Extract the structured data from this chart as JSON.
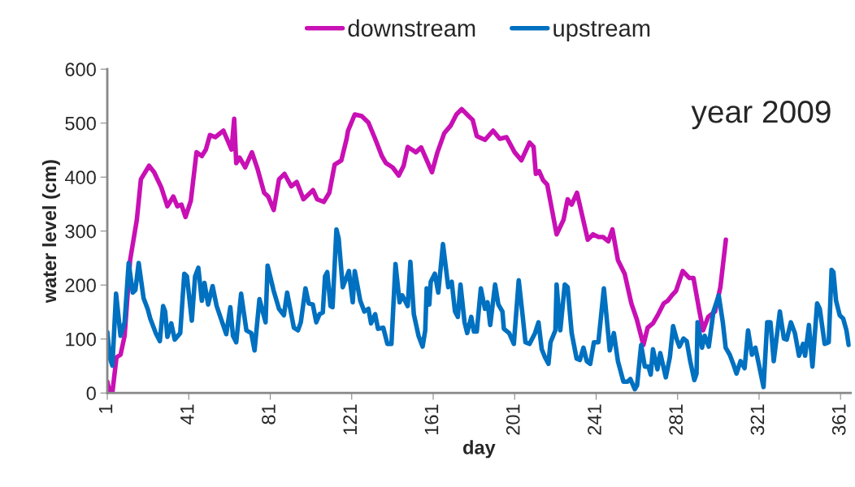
{
  "chart_data": {
    "type": "line",
    "xlabel": "day",
    "ylabel": "water level (cm)",
    "annotations": [
      "year 2009"
    ],
    "xlim": [
      1,
      366
    ],
    "xticks": [
      1,
      41,
      81,
      121,
      161,
      201,
      241,
      281,
      321,
      361
    ],
    "ylim": [
      0,
      600
    ],
    "yticks": [
      0,
      100,
      200,
      300,
      400,
      500,
      600
    ],
    "grid": false,
    "legend": "top",
    "marker": "none",
    "line_style": "solid",
    "series": [
      {
        "name": "downstream",
        "color": "#c810b4",
        "x": [
          1,
          2.2,
          3.5,
          5.5,
          7.5,
          9.5,
          12.2,
          15.5,
          17.5,
          21.5,
          24,
          27.5,
          30.5,
          33.4,
          35.4,
          37.4,
          39.4,
          42,
          44.8,
          47.4,
          49.4,
          51.4,
          54,
          58,
          62,
          63.3,
          64.3,
          66,
          68.7,
          72,
          74.7,
          78,
          80,
          82.7,
          85.3,
          88,
          91.3,
          94,
          97.3,
          102,
          104,
          107.3,
          110,
          112.6,
          115.9,
          118.5,
          119.2,
          122.5,
          125.9,
          129.2,
          132.5,
          135.8,
          137.8,
          141.1,
          144.1,
          146.5,
          148.5,
          152.5,
          155.1,
          160.4,
          163.1,
          166.4,
          169.7,
          172.4,
          175,
          178.4,
          180.4,
          182.4,
          186.4,
          190.4,
          193.7,
          197,
          201,
          204.3,
          208.3,
          210.3,
          211.4,
          213,
          215,
          217,
          221.6,
          225,
          227,
          229,
          231.6,
          236.9,
          239.5,
          242.2,
          244.4,
          247,
          249,
          251.7,
          255,
          258.3,
          261,
          264.2,
          266.3,
          268.9,
          271.5,
          274.2,
          276.2,
          278.2,
          280.2,
          283.5,
          286.8,
          288.8,
          291.5,
          293.5,
          296,
          299.4,
          302,
          304.7
        ],
        "values": [
          21,
          1,
          1,
          66,
          71,
          106,
          246,
          321,
          396,
          421,
          409,
          381,
          346,
          364,
          346,
          349,
          326,
          356,
          446,
          439,
          451,
          478,
          474,
          486,
          451,
          508,
          426,
          436,
          418,
          446,
          416,
          371,
          364,
          339,
          396,
          406,
          383,
          391,
          359,
          376,
          359,
          354,
          371,
          423,
          431,
          471,
          486,
          516,
          513,
          501,
          471,
          439,
          426,
          418,
          403,
          421,
          456,
          446,
          455,
          409,
          446,
          481,
          496,
          516,
          526,
          513,
          506,
          476,
          469,
          486,
          471,
          474,
          446,
          431,
          464,
          456,
          406,
          411,
          394,
          386,
          294,
          321,
          359,
          349,
          371,
          284,
          294,
          289,
          289,
          281,
          303,
          246,
          221,
          166,
          136,
          89,
          121,
          129,
          146,
          166,
          171,
          181,
          189,
          226,
          213,
          213,
          156,
          116,
          141,
          151,
          196,
          284
        ]
      },
      {
        "name": "upstream",
        "color": "#0070c0",
        "x": [
          1,
          2.2,
          3.5,
          5.3,
          7.5,
          9.5,
          11.5,
          13.5,
          14.8,
          16.4,
          18.8,
          20.8,
          22.1,
          24.8,
          26.8,
          28.4,
          29.4,
          30.5,
          32.4,
          34.1,
          36.8,
          38.8,
          40.1,
          42.5,
          44.1,
          45.7,
          47.4,
          48.7,
          50.5,
          52.7,
          54.7,
          59.4,
          61.4,
          62.7,
          64.3,
          66.7,
          69.3,
          71.7,
          73.3,
          75.7,
          78.7,
          79.7,
          82.7,
          85.3,
          87.7,
          89.3,
          92.6,
          94.6,
          96,
          98.3,
          99.9,
          101.9,
          103.6,
          105.2,
          106.8,
          107.9,
          109,
          110.6,
          111.6,
          113.5,
          114.6,
          116.6,
          119.6,
          121.5,
          122.5,
          125.2,
          127.2,
          129.2,
          130.5,
          132.5,
          133.9,
          136.5,
          138.5,
          140.5,
          142.5,
          144.5,
          145.8,
          148.5,
          149.8,
          151.5,
          153.8,
          155.8,
          157.1,
          157.8,
          159.1,
          159.8,
          161.8,
          163.5,
          165.8,
          168.4,
          170.1,
          171.7,
          173.1,
          174.4,
          176.4,
          177.7,
          179.7,
          181,
          182.4,
          184.4,
          186.4,
          187.7,
          189,
          191.4,
          193,
          195,
          195.7,
          198.3,
          200.6,
          203,
          204.7,
          206.3,
          208.3,
          211,
          212.7,
          214.3,
          215.9,
          217.6,
          218.6,
          221,
          221.6,
          223.4,
          225.6,
          227,
          229,
          231.4,
          233,
          234.8,
          236.4,
          238.1,
          239.9,
          242.1,
          244.8,
          247.7,
          249.7,
          251.7,
          254.4,
          256.4,
          257.8,
          260,
          261.1,
          263.1,
          264.9,
          266.7,
          267.8,
          268.9,
          271.1,
          272.5,
          275.2,
          277.2,
          278.8,
          280.6,
          281.9,
          283.9,
          285.5,
          287.2,
          289.2,
          290.3,
          290.8,
          293,
          294.3,
          296.3,
          298.6,
          301.2,
          303.2,
          304.6,
          306.6,
          308.6,
          309.9,
          311.9,
          313.9,
          315.6,
          317.5,
          319.2,
          323.2,
          325,
          326.6,
          328.2,
          331.2,
          333.2,
          334.6,
          336.6,
          338.6,
          340.6,
          342.6,
          343.6,
          345.5,
          347.2,
          349.5,
          350.8,
          353.2,
          355.2,
          356.6,
          357.5,
          358.8,
          360.6,
          362.3,
          363.9,
          365
        ],
        "values": [
          113,
          66,
          51,
          184,
          106,
          131,
          241,
          186,
          191,
          241,
          176,
          156,
          138,
          111,
          96,
          161,
          151,
          104,
          129,
          99,
          111,
          221,
          216,
          134,
          216,
          232,
          171,
          204,
          164,
          198,
          161,
          109,
          159,
          106,
          94,
          184,
          116,
          111,
          79,
          174,
          131,
          236,
          189,
          156,
          144,
          186,
          121,
          116,
          131,
          194,
          166,
          164,
          131,
          146,
          149,
          216,
          224,
          161,
          159,
          303,
          286,
          196,
          226,
          168,
          226,
          171,
          151,
          156,
          129,
          146,
          119,
          121,
          91,
          91,
          239,
          168,
          181,
          161,
          243,
          146,
          106,
          86,
          116,
          194,
          164,
          206,
          221,
          186,
          276,
          196,
          206,
          151,
          141,
          201,
          131,
          111,
          141,
          114,
          114,
          194,
          156,
          168,
          126,
          201,
          164,
          151,
          119,
          111,
          91,
          209,
          151,
          94,
          91,
          111,
          131,
          81,
          66,
          54,
          94,
          116,
          201,
          116,
          201,
          196,
          111,
          64,
          61,
          84,
          59,
          54,
          94,
          94,
          194,
          79,
          111,
          59,
          21,
          21,
          26,
          7,
          14,
          89,
          49,
          49,
          34,
          81,
          44,
          74,
          29,
          66,
          124,
          99,
          86,
          101,
          96,
          59,
          24,
          36,
          131,
          84,
          106,
          86,
          151,
          181,
          131,
          84,
          71,
          51,
          36,
          59,
          46,
          116,
          71,
          84,
          11,
          131,
          131,
          59,
          151,
          101,
          99,
          131,
          111,
          69,
          91,
          69,
          126,
          49,
          166,
          156,
          91,
          94,
          228,
          224,
          171,
          144,
          138,
          116,
          89
        ]
      }
    ]
  }
}
